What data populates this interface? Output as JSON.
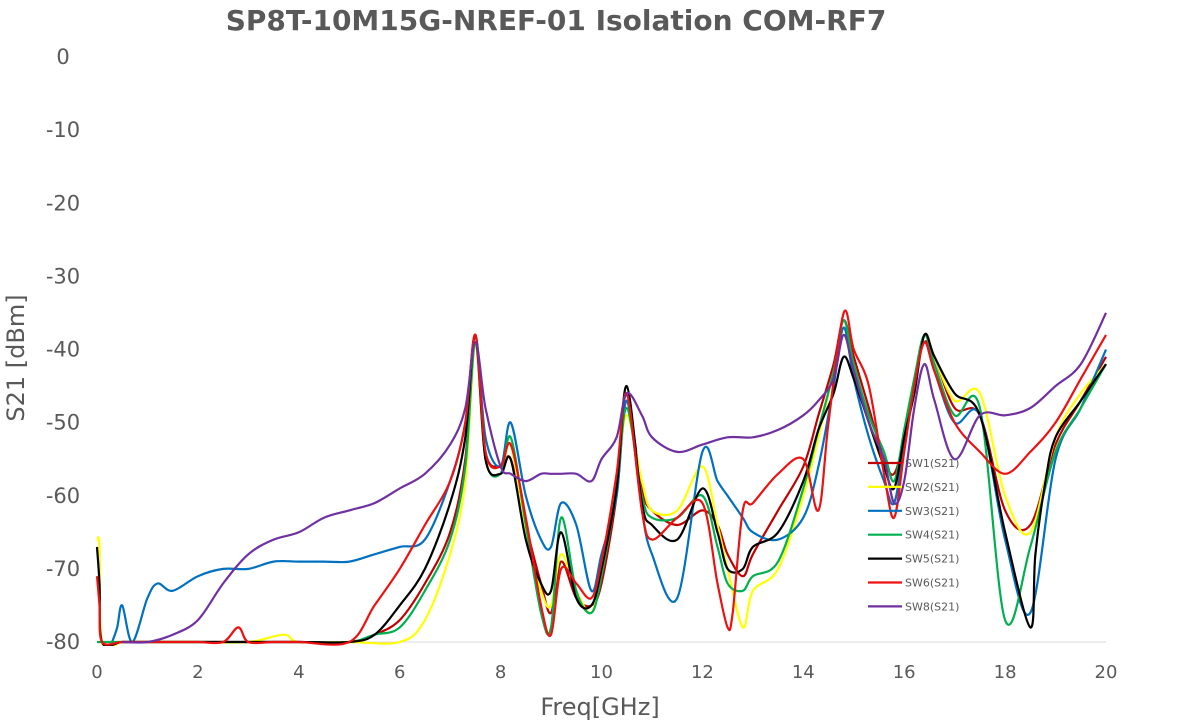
{
  "chart_data": {
    "type": "line",
    "title": "SP8T-10M15G-NREF-01  Isolation   COM-RF7",
    "xlabel": "Freq[GHz]",
    "ylabel": "S21  [dBm]",
    "xlim": [
      0,
      20
    ],
    "ylim": [
      -80,
      0
    ],
    "xticks": [
      0,
      2,
      4,
      6,
      8,
      10,
      12,
      14,
      16,
      18,
      20
    ],
    "yticks": [
      0,
      -10,
      -20,
      -30,
      -40,
      -50,
      -60,
      -70,
      -80
    ],
    "grid": false,
    "legend_position": "right",
    "series": [
      {
        "name": "SW1(S21)",
        "color": "#c00000",
        "x": [
          0.5,
          1,
          2,
          3,
          4,
          5,
          5.5,
          6,
          6.5,
          7,
          7.3,
          7.5,
          7.7,
          8,
          8.2,
          8.5,
          8.8,
          9,
          9.2,
          9.5,
          9.8,
          10,
          10.3,
          10.5,
          10.8,
          11,
          11.5,
          12,
          12.3,
          12.5,
          12.8,
          13,
          13.5,
          14,
          14.3,
          14.6,
          14.8,
          15,
          15.3,
          15.6,
          15.8,
          16,
          16.2,
          16.4,
          16.6,
          17,
          17.5,
          18,
          18.5,
          19,
          19.5,
          20
        ],
        "y": [
          -80,
          -80,
          -80,
          -80,
          -80,
          -80,
          -79,
          -77,
          -72,
          -65,
          -55,
          -39,
          -54,
          -56,
          -55,
          -64,
          -72,
          -76,
          -69,
          -74,
          -75,
          -72,
          -60,
          -47,
          -59,
          -62,
          -64,
          -62,
          -64,
          -68,
          -71,
          -68,
          -62,
          -56,
          -49,
          -42,
          -36,
          -41,
          -48,
          -55,
          -57,
          -52,
          -44,
          -39,
          -41,
          -48,
          -49,
          -62,
          -64,
          -53,
          -47,
          -41
        ]
      },
      {
        "name": "SW2(S21)",
        "color": "#ffff00",
        "x": [
          0,
          0.05,
          0.1,
          0.5,
          1,
          2,
          3,
          3.7,
          4,
          5,
          6,
          6.5,
          7,
          7.3,
          7.5,
          7.7,
          8,
          8.2,
          8.5,
          8.8,
          9,
          9.2,
          9.5,
          9.8,
          10,
          10.3,
          10.5,
          10.8,
          11,
          11.5,
          12,
          12.3,
          12.5,
          12.8,
          13,
          13.5,
          14,
          14.3,
          14.6,
          14.8,
          15,
          15.3,
          15.6,
          15.8,
          16,
          16.2,
          16.4,
          16.6,
          17,
          17.5,
          18,
          18.5,
          19,
          19.5,
          20
        ],
        "y": [
          -66,
          -67,
          -80,
          -80,
          -80,
          -80,
          -80,
          -79,
          -80,
          -80,
          -80,
          -77,
          -68,
          -58,
          -39,
          -55,
          -57,
          -53,
          -65,
          -73,
          -75,
          -68,
          -73,
          -76,
          -70,
          -58,
          -49,
          -58,
          -62,
          -62,
          -56,
          -64,
          -70,
          -78,
          -73,
          -70,
          -60,
          -52,
          -43,
          -38,
          -42,
          -50,
          -56,
          -59,
          -51,
          -44,
          -38,
          -41,
          -47,
          -46,
          -60,
          -65,
          -52,
          -46,
          -42
        ]
      },
      {
        "name": "SW3(S21)",
        "color": "#0070c0",
        "x": [
          0.3,
          0.4,
          0.5,
          0.7,
          1,
          1.2,
          1.5,
          2,
          2.5,
          3,
          3.5,
          4,
          4.5,
          5,
          5.5,
          6,
          6.5,
          7,
          7.3,
          7.5,
          7.7,
          8,
          8.2,
          8.5,
          8.8,
          9,
          9.2,
          9.5,
          9.8,
          10,
          10.3,
          10.5,
          10.8,
          11,
          11.5,
          12,
          12.3,
          12.5,
          12.8,
          13,
          13.5,
          14,
          14.3,
          14.6,
          14.8,
          15,
          15.3,
          15.6,
          15.8,
          16,
          16.2,
          16.4,
          16.6,
          17,
          17.5,
          18,
          18.5,
          19,
          19.5,
          20
        ],
        "y": [
          -80,
          -78,
          -75,
          -80,
          -74,
          -72,
          -73,
          -71,
          -70,
          -70,
          -69,
          -69,
          -69,
          -69,
          -68,
          -67,
          -66,
          -58,
          -50,
          -38,
          -52,
          -56,
          -50,
          -60,
          -66,
          -67,
          -61,
          -64,
          -73,
          -68,
          -60,
          -47,
          -62,
          -68,
          -74,
          -54,
          -58,
          -60,
          -63,
          -65,
          -66,
          -63,
          -56,
          -45,
          -37,
          -44,
          -52,
          -58,
          -61,
          -53,
          -44,
          -39,
          -43,
          -50,
          -49,
          -66,
          -76,
          -55,
          -48,
          -40
        ]
      },
      {
        "name": "SW4(S21)",
        "color": "#00b050",
        "x": [
          0,
          0.5,
          1,
          2,
          3,
          4,
          5,
          5.5,
          6,
          6.5,
          7,
          7.3,
          7.5,
          7.7,
          8,
          8.2,
          8.5,
          8.8,
          9,
          9.2,
          9.5,
          9.8,
          10,
          10.3,
          10.5,
          10.8,
          11,
          11.5,
          12,
          12.3,
          12.5,
          12.8,
          13,
          13.5,
          14,
          14.3,
          14.6,
          14.8,
          15,
          15.3,
          15.6,
          15.8,
          16,
          16.2,
          16.4,
          16.6,
          17,
          17.5,
          18,
          18.5,
          19,
          19.5,
          20
        ],
        "y": [
          -80,
          -80,
          -80,
          -80,
          -80,
          -80,
          -80,
          -79,
          -78,
          -73,
          -66,
          -56,
          -39,
          -55,
          -57,
          -52,
          -64,
          -76,
          -78,
          -63,
          -73,
          -76,
          -71,
          -59,
          -48,
          -60,
          -63,
          -63,
          -60,
          -67,
          -72,
          -73,
          -71,
          -69,
          -59,
          -51,
          -43,
          -36,
          -42,
          -49,
          -54,
          -58,
          -51,
          -44,
          -38,
          -42,
          -49,
          -48,
          -77,
          -67,
          -54,
          -48,
          -42
        ]
      },
      {
        "name": "SW5(S21)",
        "color": "#000000",
        "x": [
          0,
          0.05,
          0.1,
          0.5,
          1,
          2,
          3,
          4,
          5,
          5.5,
          6,
          6.5,
          7,
          7.3,
          7.5,
          7.7,
          8,
          8.2,
          8.5,
          8.8,
          9,
          9.2,
          9.5,
          9.8,
          10,
          10.3,
          10.5,
          10.8,
          11,
          11.5,
          12,
          12.3,
          12.5,
          12.8,
          13,
          13.5,
          14,
          14.3,
          14.6,
          14.8,
          15,
          15.3,
          15.6,
          15.8,
          16,
          16.2,
          16.4,
          16.6,
          17,
          17.5,
          18,
          18.5,
          18.6,
          18.8,
          19,
          19.5,
          20
        ],
        "y": [
          -67,
          -72,
          -80,
          -80,
          -80,
          -80,
          -80,
          -80,
          -80,
          -79,
          -75,
          -70,
          -61,
          -52,
          -38,
          -55,
          -57,
          -55,
          -66,
          -72,
          -73,
          -65,
          -74,
          -75,
          -70,
          -59,
          -45,
          -61,
          -64,
          -66,
          -59,
          -65,
          -70,
          -70,
          -67,
          -65,
          -58,
          -51,
          -46,
          -41,
          -44,
          -50,
          -56,
          -59,
          -52,
          -46,
          -38,
          -41,
          -46,
          -49,
          -65,
          -78,
          -68,
          -58,
          -52,
          -47,
          -42
        ]
      },
      {
        "name": "SW6(S21)",
        "color": "#ee1111",
        "x": [
          0,
          0.05,
          0.1,
          0.5,
          1,
          1.5,
          2,
          2.5,
          2.8,
          3,
          3.5,
          4,
          5,
          5.5,
          6,
          6.5,
          7,
          7.3,
          7.5,
          7.7,
          8,
          8.2,
          8.5,
          8.8,
          9,
          9.2,
          9.5,
          9.8,
          10,
          10.3,
          10.5,
          10.8,
          11,
          11.5,
          12,
          12.3,
          12.5,
          12.6,
          12.8,
          13,
          13.5,
          14,
          14.3,
          14.5,
          14.8,
          15,
          15.3,
          15.6,
          15.8,
          16,
          16.2,
          16.4,
          16.6,
          17,
          17.5,
          18,
          18.5,
          19,
          19.5,
          20
        ],
        "y": [
          -71,
          -75,
          -80,
          -80,
          -80,
          -80,
          -80,
          -80,
          -78,
          -80,
          -80,
          -80,
          -80,
          -75,
          -70,
          -64,
          -58,
          -50,
          -38,
          -54,
          -56,
          -53,
          -63,
          -75,
          -79,
          -70,
          -72,
          -74,
          -69,
          -57,
          -46,
          -62,
          -66,
          -63,
          -61,
          -72,
          -78,
          -76,
          -62,
          -61,
          -57,
          -55,
          -62,
          -50,
          -35,
          -40,
          -45,
          -57,
          -63,
          -54,
          -45,
          -39,
          -43,
          -50,
          -54,
          -57,
          -54,
          -50,
          -44,
          -38
        ]
      },
      {
        "name": "SW8(S21)",
        "color": "#7030a0",
        "x": [
          0.5,
          1,
          1.5,
          2,
          2.5,
          3,
          3.5,
          4,
          4.5,
          5,
          5.5,
          6,
          6.5,
          7,
          7.3,
          7.5,
          7.7,
          8,
          8.2,
          8.5,
          8.8,
          9,
          9.2,
          9.5,
          9.8,
          10,
          10.3,
          10.5,
          10.8,
          11,
          11.5,
          12,
          12.5,
          13,
          13.5,
          14,
          14.3,
          14.6,
          14.8,
          15,
          15.3,
          15.6,
          15.8,
          16,
          16.2,
          16.4,
          16.6,
          17,
          17.5,
          18,
          18.5,
          19,
          19.5,
          20
        ],
        "y": [
          -80,
          -80,
          -79,
          -77,
          -72,
          -68,
          -66,
          -65,
          -63,
          -62,
          -61,
          -59,
          -57,
          -53,
          -48,
          -39,
          -48,
          -56,
          -57,
          -58,
          -57,
          -57,
          -57,
          -57,
          -58,
          -55,
          -52,
          -46,
          -49,
          -52,
          -54,
          -53,
          -52,
          -52,
          -51,
          -49,
          -47,
          -44,
          -38,
          -43,
          -50,
          -55,
          -61,
          -58,
          -48,
          -42,
          -47,
          -55,
          -49,
          -49,
          -48,
          -45,
          -42,
          -35
        ]
      }
    ]
  }
}
